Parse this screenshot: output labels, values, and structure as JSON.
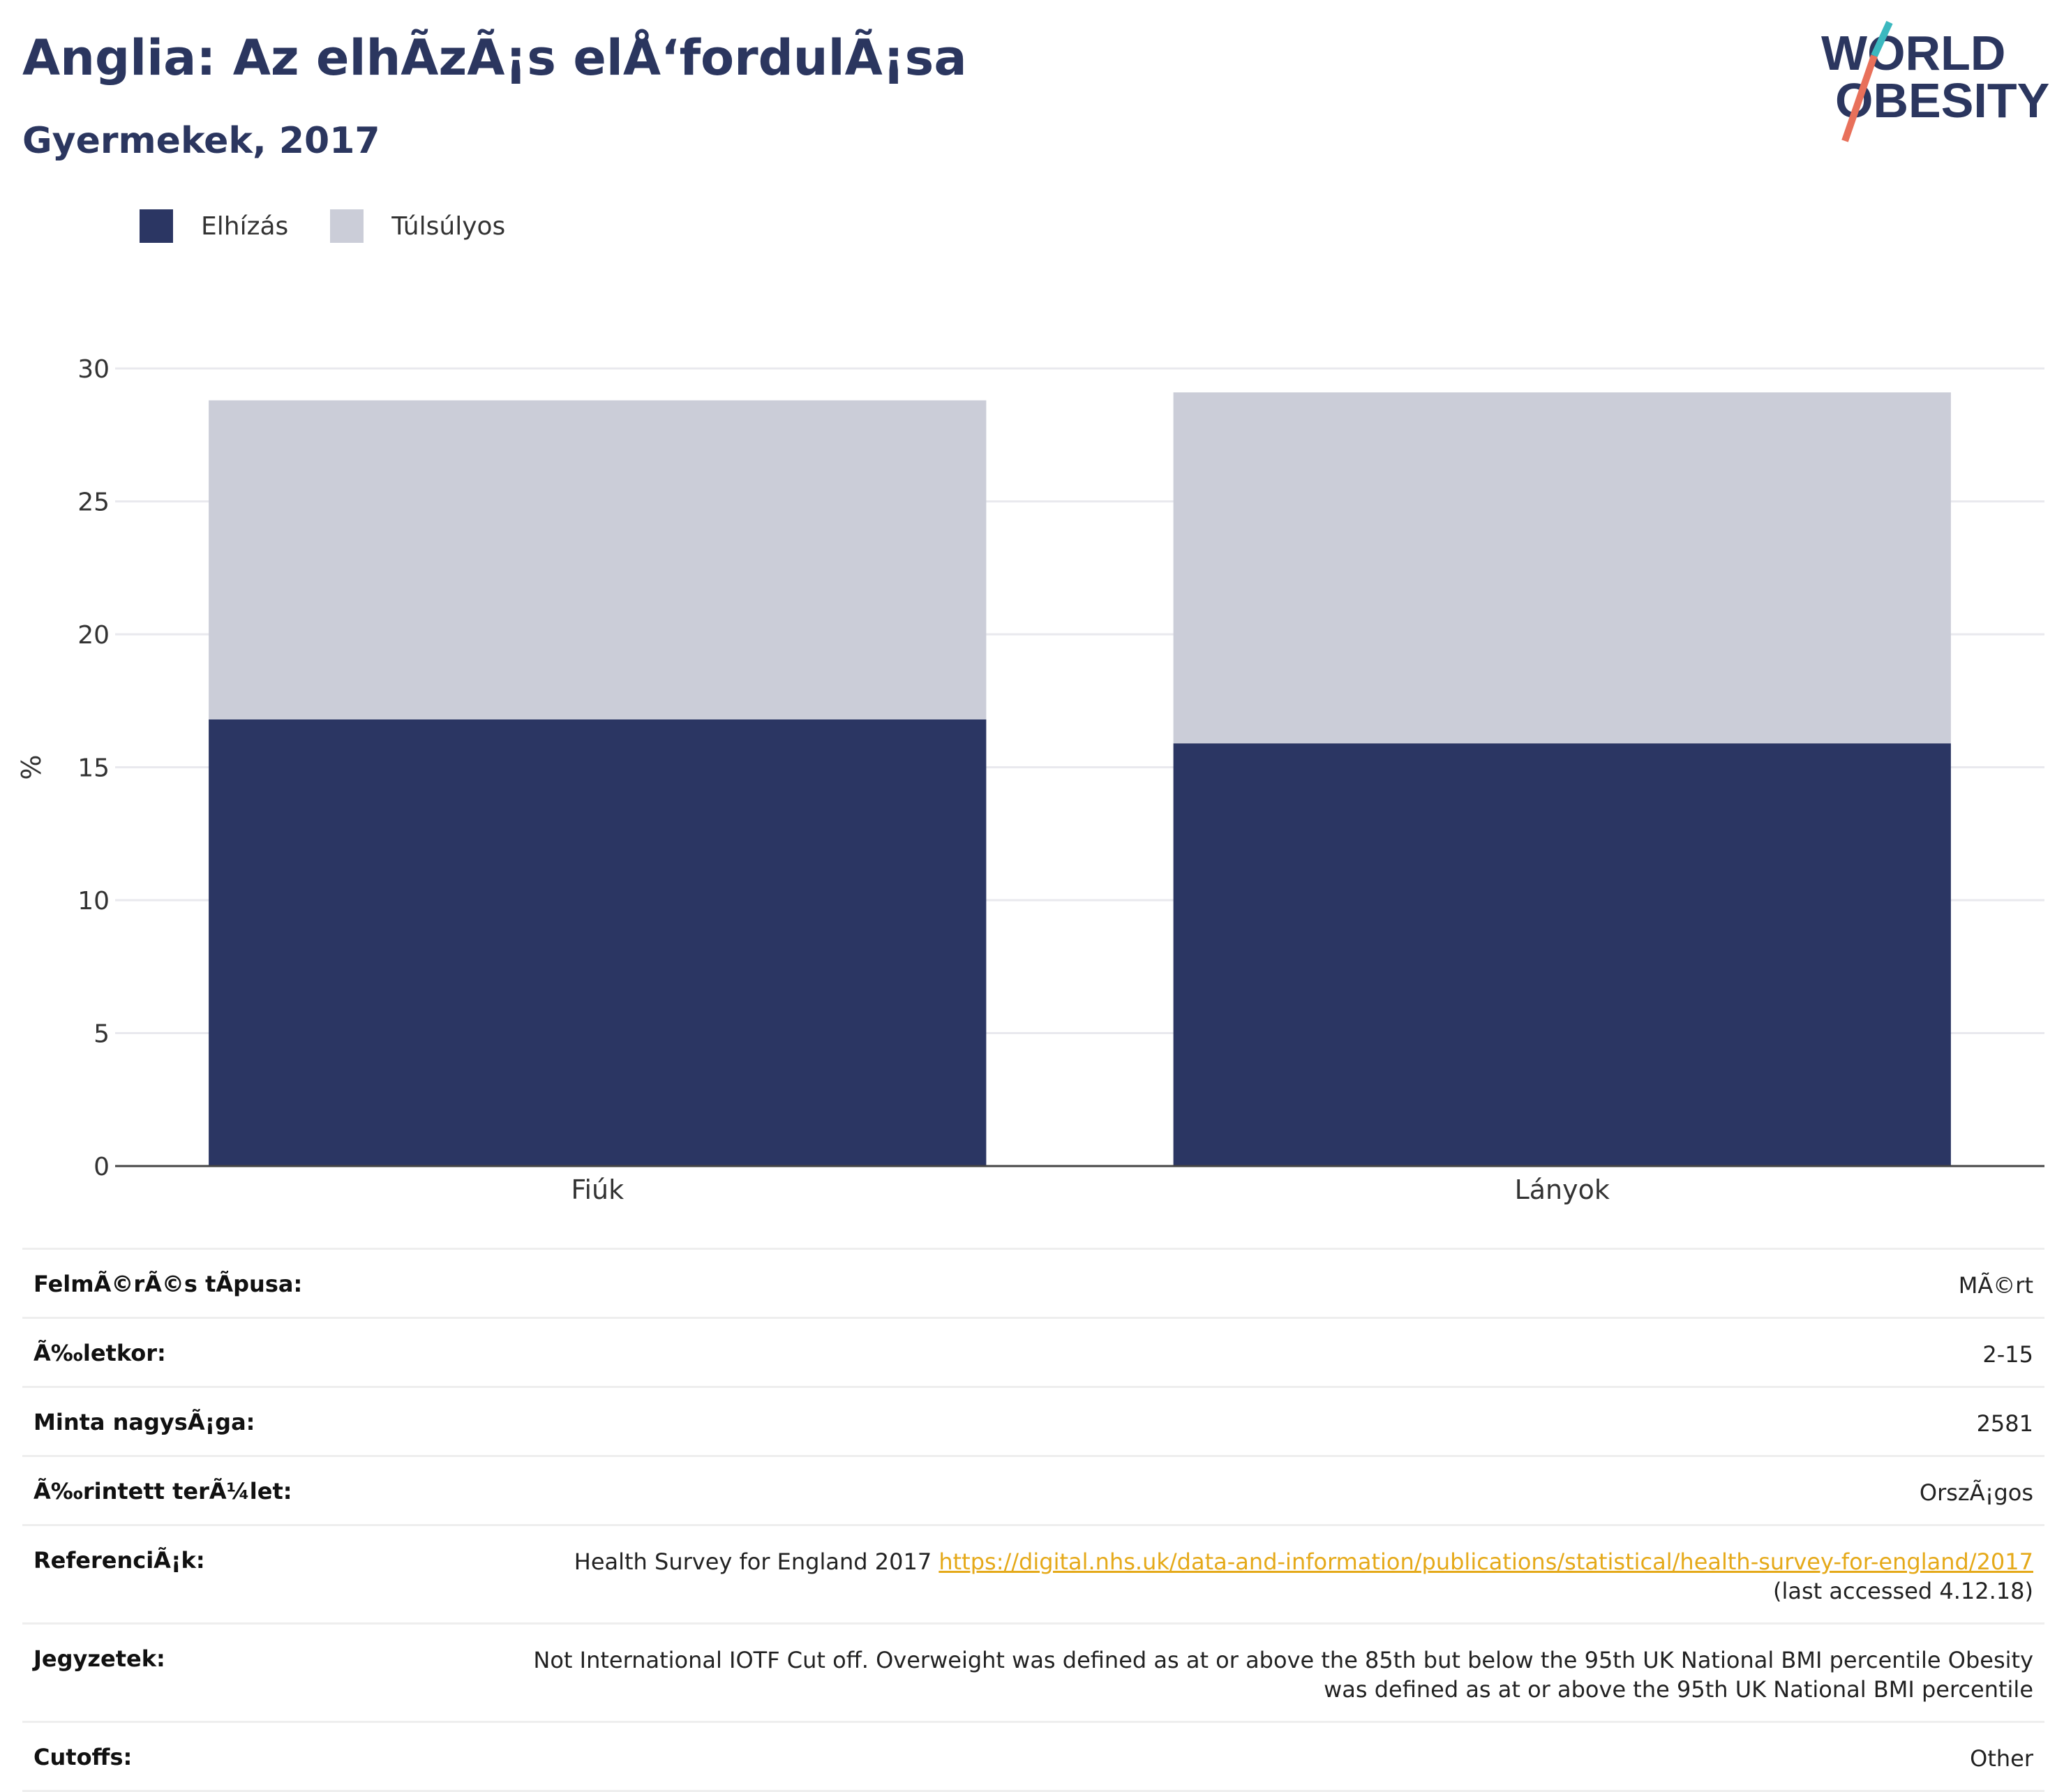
{
  "title": "Anglia: Az elhÃzÃ¡s elÅ‘fordulÃ¡sa",
  "subtitle": "Gyermekek, 2017",
  "logo": {
    "line1": "WORLD",
    "line2": "OBESITY"
  },
  "colors": {
    "obesity": "#2b3663",
    "overweight": "#cbcdd8",
    "accent_teal": "#3bb8bf",
    "accent_coral": "#e8705a",
    "link": "#e5a919"
  },
  "chart_data": {
    "type": "bar",
    "stacked": true,
    "categories": [
      "Fiúk",
      "Lányok"
    ],
    "series": [
      {
        "name": "Elhízás",
        "values": [
          16.8,
          15.9
        ]
      },
      {
        "name": "Túlsúlyos",
        "values": [
          12.0,
          13.2
        ]
      }
    ],
    "ylabel": "%",
    "ylim": [
      0,
      30
    ],
    "yticks": [
      0,
      5,
      10,
      15,
      20,
      25,
      30
    ],
    "grid": true,
    "legend_position": "top-left"
  },
  "info": {
    "rows": [
      {
        "label": "FelmÃ©rÃ©s tÃpusa:",
        "value": "MÃ©rt"
      },
      {
        "label": "Ã‰letkor:",
        "value": "2-15"
      },
      {
        "label": "Minta nagysÃ¡ga:",
        "value": "2581"
      },
      {
        "label": "Ã‰rintett terÃ¼let:",
        "value": "OrszÃ¡gos"
      }
    ],
    "reference": {
      "label": "ReferenciÃ¡k:",
      "text": "Health Survey for England 2017",
      "link": "https://digital.nhs.uk/data-and-information/publications/statistical/health-survey-for-england/2017",
      "accessed": "(last accessed 4.12.18)"
    },
    "notes": {
      "label": "Jegyzetek:",
      "line1": "Not International IOTF Cut off. Overweight was defined as at or above the 85th but below the 95th UK National BMI percentile Obesity",
      "line2": "was defined as at or above the 95th UK National BMI percentile"
    },
    "cutoffs": {
      "label": "Cutoffs:",
      "value": "Other"
    }
  }
}
